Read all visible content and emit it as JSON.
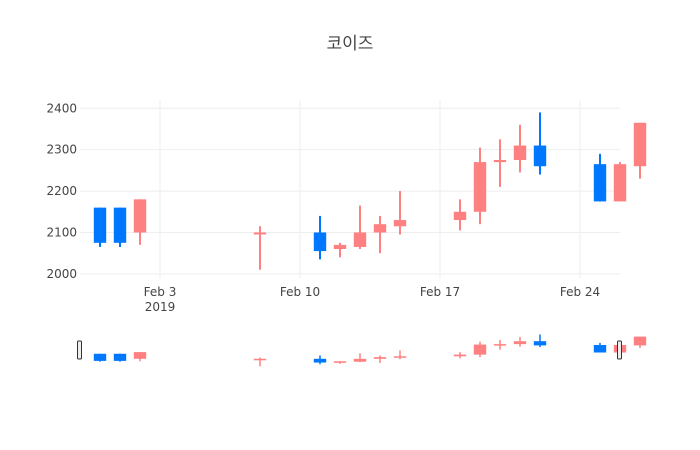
{
  "chart_data": {
    "type": "candlestick",
    "title": "코이즈",
    "xlabel": "",
    "ylabel": "",
    "ylim": [
      1990,
      2420
    ],
    "xlim": [
      "2019-01-30",
      "2019-02-26"
    ],
    "yticks": [
      2000,
      2100,
      2200,
      2300,
      2400
    ],
    "xticks": [
      {
        "date": "2019-02-03",
        "label": "Feb 3",
        "sublabel": "2019"
      },
      {
        "date": "2019-02-10",
        "label": "Feb 10",
        "sublabel": ""
      },
      {
        "date": "2019-02-17",
        "label": "Feb 17",
        "sublabel": ""
      },
      {
        "date": "2019-02-24",
        "label": "Feb 24",
        "sublabel": ""
      }
    ],
    "grid": true,
    "rangeslider": true,
    "colors": {
      "increasing": "#ff8080",
      "decreasing": "#0077ff"
    },
    "candles": [
      {
        "date": "2019-01-31",
        "open": 2160,
        "high": 2160,
        "low": 2065,
        "close": 2075
      },
      {
        "date": "2019-02-01",
        "open": 2160,
        "high": 2160,
        "low": 2065,
        "close": 2075
      },
      {
        "date": "2019-02-02",
        "open": 2100,
        "high": 2180,
        "low": 2070,
        "close": 2180
      },
      {
        "date": "2019-02-08",
        "open": 2100,
        "high": 2115,
        "low": 2010,
        "close": 2100
      },
      {
        "date": "2019-02-11",
        "open": 2100,
        "high": 2140,
        "low": 2035,
        "close": 2055
      },
      {
        "date": "2019-02-12",
        "open": 2060,
        "high": 2075,
        "low": 2040,
        "close": 2070
      },
      {
        "date": "2019-02-13",
        "open": 2065,
        "high": 2165,
        "low": 2060,
        "close": 2100
      },
      {
        "date": "2019-02-14",
        "open": 2100,
        "high": 2140,
        "low": 2050,
        "close": 2120
      },
      {
        "date": "2019-02-15",
        "open": 2115,
        "high": 2200,
        "low": 2095,
        "close": 2130
      },
      {
        "date": "2019-02-18",
        "open": 2130,
        "high": 2180,
        "low": 2105,
        "close": 2150
      },
      {
        "date": "2019-02-19",
        "open": 2150,
        "high": 2305,
        "low": 2120,
        "close": 2270
      },
      {
        "date": "2019-02-20",
        "open": 2270,
        "high": 2325,
        "low": 2210,
        "close": 2275
      },
      {
        "date": "2019-02-21",
        "open": 2275,
        "high": 2360,
        "low": 2245,
        "close": 2310
      },
      {
        "date": "2019-02-22",
        "open": 2310,
        "high": 2390,
        "low": 2240,
        "close": 2260
      },
      {
        "date": "2019-02-25",
        "open": 2265,
        "high": 2290,
        "low": 2175,
        "close": 2175
      },
      {
        "date": "2019-02-26",
        "open": 2175,
        "high": 2270,
        "low": 2175,
        "close": 2265
      },
      {
        "date": "2019-02-27",
        "open": 2260,
        "high": 2365,
        "low": 2230,
        "close": 2365
      }
    ]
  }
}
